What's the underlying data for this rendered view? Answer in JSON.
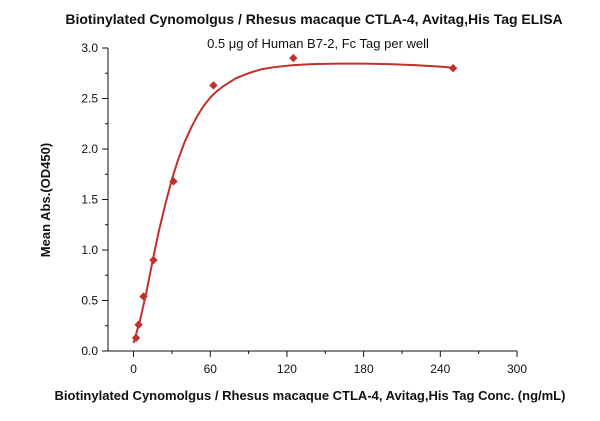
{
  "chart_data": {
    "type": "scatter",
    "title": "Biotinylated Cynomolgus / Rhesus macaque CTLA-4, Avitag,His Tag ELISA",
    "subtitle": "0.5 μg of Human B7-2, Fc Tag per well",
    "xlabel": "Biotinylated Cynomolgus / Rhesus macaque CTLA-4, Avitag,His Tag Conc. (ng/mL)",
    "ylabel": "Mean Abs.(OD450)",
    "xlim": [
      -20,
      300
    ],
    "ylim": [
      0,
      3.0
    ],
    "x_ticks": [
      0,
      60,
      120,
      180,
      240,
      300
    ],
    "y_ticks": [
      "0.0",
      "0.5",
      "1.0",
      "1.5",
      "2.0",
      "2.5",
      "3.0"
    ],
    "grid": false,
    "series": [
      {
        "marker": "diamond",
        "color": "#c0302c",
        "x": [
          1.95,
          3.9,
          7.8,
          15.6,
          31.25,
          62.5,
          125,
          250
        ],
        "y": [
          0.13,
          0.26,
          0.54,
          0.9,
          1.68,
          2.63,
          2.9,
          2.8
        ]
      }
    ],
    "fit_curve": {
      "color": "#c0302c",
      "x": [
        0,
        5,
        10,
        15,
        20,
        25,
        30,
        35,
        40,
        45,
        50,
        55,
        60,
        65,
        70,
        80,
        90,
        100,
        110,
        125,
        140,
        160,
        180,
        200,
        220,
        240,
        250
      ],
      "y": [
        0.08,
        0.3,
        0.58,
        0.9,
        1.2,
        1.46,
        1.7,
        1.9,
        2.07,
        2.21,
        2.33,
        2.43,
        2.51,
        2.57,
        2.62,
        2.7,
        2.75,
        2.79,
        2.81,
        2.83,
        2.84,
        2.845,
        2.845,
        2.84,
        2.83,
        2.815,
        2.805
      ]
    }
  }
}
